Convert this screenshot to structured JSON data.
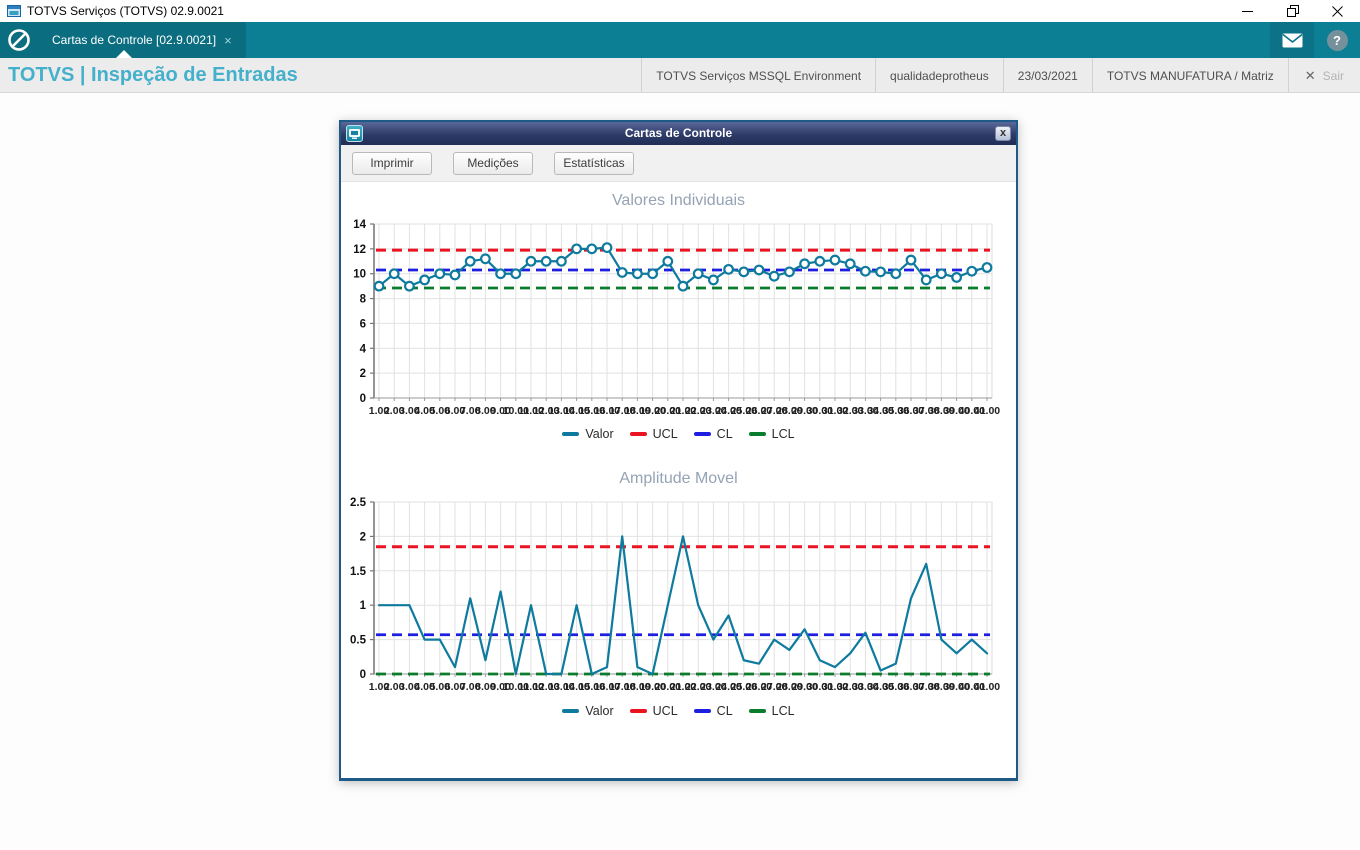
{
  "window": {
    "title": "TOTVS Serviços (TOTVS) 02.9.0021",
    "controls": [
      "minimize",
      "restore",
      "close"
    ]
  },
  "appbar": {
    "tab_label": "Cartas de Controle [02.9.0021]",
    "tab_close": "×",
    "icons": [
      "home-prohibition",
      "mail",
      "help"
    ],
    "help_glyph": "?"
  },
  "header": {
    "app_title": "TOTVS | Inspeção de Entradas",
    "environment": "TOTVS Serviços MSSQL Environment",
    "user": "qualidadeprotheus",
    "date": "23/03/2021",
    "company": "TOTVS MANUFATURA / Matriz",
    "sair_label": "Sair",
    "sair_icon": "✕"
  },
  "dialog": {
    "title": "Cartas de Controle",
    "close_glyph": "x",
    "toolbar": {
      "buttons": [
        "Imprimir",
        "Medições",
        "Estatísticas"
      ]
    }
  },
  "colors": {
    "teal_bar": "#0d7f95",
    "teal_dark": "#0b6d80",
    "header_title": "#45b0cb",
    "dialog_border": "#1d5a87",
    "series_valor": "#0e7a9e",
    "series_ucl": "#ea1320",
    "series_cl": "#1e1ee0",
    "series_lcl": "#0a7d2c",
    "grid": "#e2e2e2",
    "chart_title": "#95a3b4"
  },
  "chart_data": [
    {
      "type": "line",
      "title": "Valores Individuais",
      "ylim": [
        0,
        14
      ],
      "yticks": [
        "0",
        "2",
        "4",
        "6",
        "8",
        "10",
        "12",
        "14"
      ],
      "grid": true,
      "legend_position": "bottom",
      "x_labels": [
        "1.00",
        "2.00",
        "3.00",
        "4.00",
        "5.00",
        "6.00",
        "7.00",
        "8.00",
        "9.00",
        "10.00",
        "11.00",
        "12.00",
        "13.00",
        "14.00",
        "15.00",
        "16.00",
        "17.00",
        "18.00",
        "19.00",
        "20.00",
        "21.00",
        "22.00",
        "23.00",
        "24.00",
        "25.00",
        "26.00",
        "27.00",
        "28.00",
        "29.00",
        "30.00",
        "31.00",
        "32.00",
        "33.00",
        "34.00",
        "35.00",
        "36.00",
        "37.00",
        "38.00",
        "39.00",
        "40.00",
        "41.00"
      ],
      "series": [
        {
          "name": "Valor",
          "color": "#0e7a9e",
          "marker": "circle",
          "width": 2.2,
          "values": [
            9.0,
            10.0,
            9.0,
            9.5,
            10.0,
            9.9,
            11.0,
            11.2,
            10.0,
            10.0,
            11.0,
            11.0,
            11.0,
            12.0,
            12.0,
            12.1,
            10.1,
            10.0,
            10.0,
            11.0,
            9.0,
            10.0,
            9.5,
            10.35,
            10.15,
            10.3,
            9.8,
            10.15,
            10.8,
            11.0,
            11.1,
            10.8,
            10.2,
            10.15,
            10.0,
            11.1,
            9.5,
            10.0,
            9.7,
            10.2,
            10.5
          ]
        },
        {
          "name": "UCL",
          "color": "#ea1320",
          "style": "dashed",
          "width": 3,
          "value": 11.9
        },
        {
          "name": "CL",
          "color": "#1e1ee0",
          "style": "dashed",
          "width": 2.7,
          "value": 10.3
        },
        {
          "name": "LCL",
          "color": "#0a7d2c",
          "style": "dashed",
          "width": 2.7,
          "value": 8.85
        }
      ]
    },
    {
      "type": "line",
      "title": "Amplitude Movel",
      "ylim": [
        0,
        2.5
      ],
      "yticks": [
        "0",
        "0.5",
        "1",
        "1.5",
        "2",
        "2.5"
      ],
      "grid": true,
      "legend_position": "bottom",
      "x_labels": [
        "1.00",
        "2.00",
        "3.00",
        "4.00",
        "5.00",
        "6.00",
        "7.00",
        "8.00",
        "9.00",
        "10.00",
        "11.00",
        "12.00",
        "13.00",
        "14.00",
        "15.00",
        "16.00",
        "17.00",
        "18.00",
        "19.00",
        "20.00",
        "21.00",
        "22.00",
        "23.00",
        "24.00",
        "25.00",
        "26.00",
        "27.00",
        "28.00",
        "29.00",
        "30.00",
        "31.00",
        "32.00",
        "33.00",
        "34.00",
        "35.00",
        "36.00",
        "37.00",
        "38.00",
        "39.00",
        "40.00",
        "41.00"
      ],
      "series": [
        {
          "name": "Valor",
          "color": "#0e7a9e",
          "marker": "none",
          "width": 2.2,
          "values": [
            1.0,
            1.0,
            1.0,
            0.5,
            0.5,
            0.1,
            1.1,
            0.2,
            1.2,
            0.0,
            1.0,
            0.0,
            0.0,
            1.0,
            0.0,
            0.1,
            2.0,
            0.1,
            0.0,
            1.0,
            2.0,
            1.0,
            0.5,
            0.85,
            0.2,
            0.15,
            0.5,
            0.35,
            0.65,
            0.2,
            0.1,
            0.3,
            0.6,
            0.05,
            0.15,
            1.1,
            1.6,
            0.5,
            0.3,
            0.5,
            0.3
          ]
        },
        {
          "name": "UCL",
          "color": "#ea1320",
          "style": "dashed",
          "width": 3,
          "value": 1.85
        },
        {
          "name": "CL",
          "color": "#1e1ee0",
          "style": "dashed",
          "width": 2.7,
          "value": 0.57
        },
        {
          "name": "LCL",
          "color": "#0a7d2c",
          "style": "dashed",
          "width": 2.7,
          "value": 0.0
        }
      ]
    }
  ]
}
